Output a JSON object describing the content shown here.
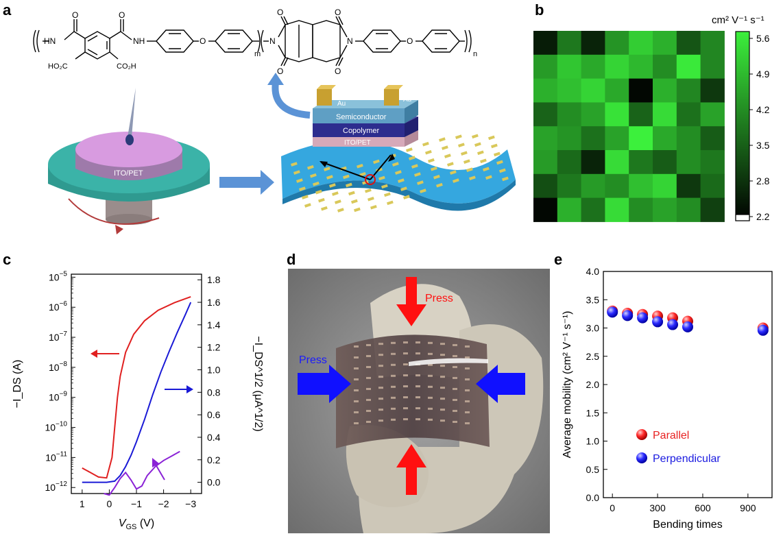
{
  "panels": {
    "a": {
      "letter": "a",
      "chem": {
        "hn_left": "HN",
        "nh_mid": "NH",
        "o_link1": "O",
        "o_link2": "O",
        "o_top1": "O",
        "o_top2": "O",
        "ho2c": "HO₂C",
        "co2h": "CO₂H",
        "sub_m": "m",
        "sub_n": "n",
        "n_left": "N",
        "n_right": "N",
        "o_imide_tl": "O",
        "o_imide_tr": "O",
        "o_imide_bl": "O",
        "o_imide_br": "O"
      },
      "spin_label": "ITO/PET",
      "stack_labels": {
        "au_left": "Au",
        "au_right": "Au",
        "semiconductor": "Semiconductor",
        "copolymer": "Copolymer",
        "ito_pet": "ITO/PET"
      },
      "colors": {
        "spin_base": "#3bb3a8",
        "spin_disc": "#d89be0",
        "arrow_blue": "#5b93d6",
        "substrate": "#35a7df",
        "electrode": "#d9c85a"
      }
    },
    "b": {
      "letter": "b",
      "unit_label": "cm² V⁻¹ s⁻¹",
      "colorbar_ticks": [
        "5.6",
        "4.9",
        "4.2",
        "3.5",
        "2.8",
        "2.2"
      ],
      "colorbar_range": [
        2.2,
        5.6
      ],
      "grid": [
        [
          2.6,
          3.9,
          2.7,
          4.3,
          5.1,
          4.7,
          3.4,
          4.1
        ],
        [
          4.4,
          5.0,
          4.6,
          5.2,
          4.8,
          4.2,
          5.5,
          4.1
        ],
        [
          4.7,
          4.9,
          5.2,
          4.6,
          2.3,
          4.7,
          4.1,
          3.0
        ],
        [
          3.6,
          4.2,
          4.5,
          5.4,
          3.6,
          5.3,
          3.8,
          4.5
        ],
        [
          4.5,
          4.3,
          3.8,
          4.5,
          5.6,
          4.6,
          4.2,
          3.5
        ],
        [
          4.4,
          3.7,
          2.7,
          5.3,
          3.9,
          3.5,
          4.2,
          3.9
        ],
        [
          3.3,
          3.9,
          4.4,
          4.2,
          4.9,
          5.2,
          3.0,
          3.7
        ],
        [
          2.3,
          4.7,
          3.8,
          5.3,
          4.2,
          4.5,
          4.2,
          3.1
        ]
      ]
    },
    "c": {
      "letter": "c",
      "chart_data": {
        "type": "line",
        "xlabel_main": "V",
        "xlabel_sub": "GS",
        "xlabel_unit": " (V)",
        "ylabel_left": "−I_DS (A)",
        "ylabel_right": "−I_DS^1/2 (μA^1/2)",
        "x_ticks": [
          "1",
          "0",
          "−1",
          "−2",
          "−3"
        ],
        "x_values": [
          1,
          0,
          -1,
          -2,
          -3
        ],
        "xlim": [
          1.4,
          -3.4
        ],
        "y_left_log_ticks": [
          -12,
          -11,
          -10,
          -9,
          -8,
          -7,
          -6,
          -5
        ],
        "y_left_ylim_log": [
          -12.2,
          -4.9
        ],
        "y_right_ticks": [
          "0.0",
          "0.2",
          "0.4",
          "0.6",
          "0.8",
          "1.0",
          "1.2",
          "1.4",
          "1.6",
          "1.8"
        ],
        "y_right_ylim": [
          -0.1,
          1.85
        ],
        "series": [
          {
            "axis": "left",
            "color": "#e02020",
            "points": [
              [
                1.0,
                -11.35
              ],
              [
                0.7,
                -11.5
              ],
              [
                0.4,
                -11.65
              ],
              [
                0.1,
                -11.68
              ],
              [
                -0.1,
                -11.0
              ],
              [
                -0.2,
                -10.0
              ],
              [
                -0.3,
                -9.0
              ],
              [
                -0.4,
                -8.3
              ],
              [
                -0.6,
                -7.5
              ],
              [
                -0.9,
                -6.9
              ],
              [
                -1.3,
                -6.45
              ],
              [
                -1.8,
                -6.1
              ],
              [
                -2.4,
                -5.85
              ],
              [
                -3.0,
                -5.65
              ]
            ]
          },
          {
            "axis": "right",
            "color": "#1a1ad6",
            "points": [
              [
                1.0,
                0.0
              ],
              [
                0.5,
                0.0
              ],
              [
                0.1,
                0.0
              ],
              [
                -0.2,
                0.01
              ],
              [
                -0.4,
                0.06
              ],
              [
                -0.6,
                0.14
              ],
              [
                -0.8,
                0.24
              ],
              [
                -1.0,
                0.36
              ],
              [
                -1.3,
                0.56
              ],
              [
                -1.6,
                0.78
              ],
              [
                -1.9,
                0.98
              ],
              [
                -2.2,
                1.16
              ],
              [
                -2.5,
                1.33
              ],
              [
                -2.8,
                1.49
              ],
              [
                -3.0,
                1.6
              ]
            ]
          },
          {
            "axis": "left",
            "color": "#8a22d6",
            "points": [
              [
                0.2,
                -12.2
              ],
              [
                0.0,
                -12.25
              ],
              [
                -0.2,
                -12.0
              ],
              [
                -0.4,
                -11.7
              ],
              [
                -0.6,
                -11.5
              ],
              [
                -0.8,
                -11.75
              ],
              [
                -1.0,
                -12.05
              ],
              [
                -1.2,
                -11.95
              ],
              [
                -1.4,
                -11.6
              ],
              [
                -1.7,
                -11.3
              ],
              [
                -2.0,
                -11.1
              ],
              [
                -2.3,
                -10.95
              ],
              [
                -2.6,
                -10.8
              ]
            ]
          }
        ]
      }
    },
    "d": {
      "letter": "d",
      "press_top": "Press",
      "press_left": "Press",
      "colors": {
        "arrow_red": "#ff1010",
        "arrow_blue": "#1010ff"
      }
    },
    "e": {
      "letter": "e",
      "chart_data": {
        "type": "scatter",
        "xlabel": "Bending times",
        "ylabel": "Average mobility (cm² V⁻¹ s⁻¹)",
        "xlim": [
          -60,
          1060
        ],
        "ylim": [
          0.0,
          4.0
        ],
        "x_ticks": [
          "0",
          "300",
          "600",
          "900"
        ],
        "y_ticks": [
          "0.0",
          "0.5",
          "1.0",
          "1.5",
          "2.0",
          "2.5",
          "3.0",
          "3.5",
          "4.0"
        ],
        "legend_position": "lower-left",
        "series": [
          {
            "name": "Parallel",
            "color": "#e82020",
            "x": [
              0,
              100,
              200,
              300,
              400,
              500,
              1000
            ],
            "y": [
              3.3,
              3.26,
              3.24,
              3.21,
              3.18,
              3.12,
              3.0
            ]
          },
          {
            "name": "Perpendicular",
            "color": "#1a1ae0",
            "x": [
              0,
              100,
              200,
              300,
              400,
              500,
              1000
            ],
            "y": [
              3.28,
              3.22,
              3.18,
              3.11,
              3.06,
              3.02,
              2.96
            ]
          }
        ]
      }
    }
  }
}
